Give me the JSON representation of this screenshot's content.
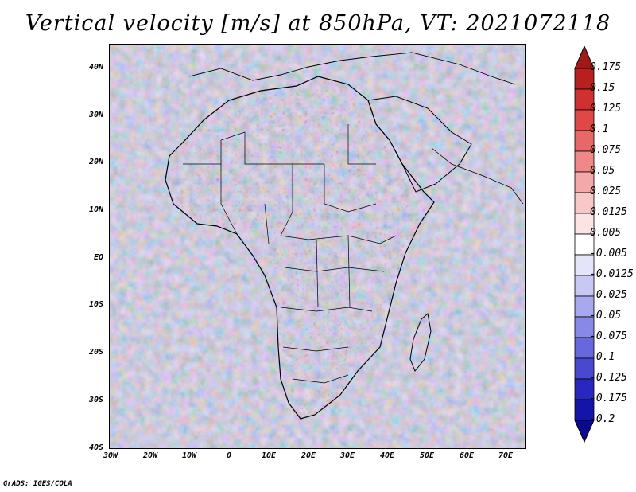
{
  "title": "Vertical velocity [m/s] at 850hPa, VT: 2021072118",
  "footer": "GrADS: IGES/COLA",
  "lat_labels": [
    "40N",
    "30N",
    "20N",
    "10N",
    "EQ",
    "10S",
    "20S",
    "30S",
    "40S"
  ],
  "lon_labels": [
    "30W",
    "20W",
    "10W",
    "0",
    "10E",
    "20E",
    "30E",
    "40E",
    "50E",
    "60E",
    "70E"
  ],
  "colorbar": {
    "levels": [
      "0.175",
      "0.15",
      "0.125",
      "0.1",
      "0.075",
      "0.05",
      "0.025",
      "0.0125",
      "0.005",
      "-0.005",
      "-0.0125",
      "-0.025",
      "-0.05",
      "-0.075",
      "-0.1",
      "-0.125",
      "-0.175",
      "-0.2"
    ],
    "colors": [
      "#a01818",
      "#b82020",
      "#d03030",
      "#e04848",
      "#e86868",
      "#f08888",
      "#f4a8a8",
      "#f8c8c8",
      "#fce4e4",
      "#ffffff",
      "#e4e4fa",
      "#c8c8f4",
      "#a8a8ee",
      "#8888e6",
      "#6868dc",
      "#4848d0",
      "#2828c0",
      "#1414a8",
      "#0a0a90"
    ]
  },
  "colors": {
    "land_border": "#000000",
    "ocean_base": "#d8d8f4"
  }
}
